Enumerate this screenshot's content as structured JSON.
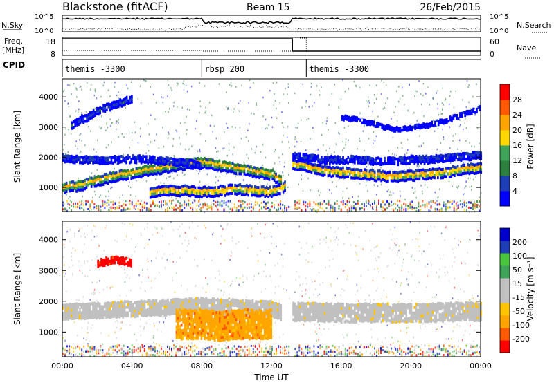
{
  "header": {
    "title": "Blackstone (fitACF)",
    "beam": "Beam 15",
    "date": "26/Feb/2015"
  },
  "top_panels": {
    "nsky_label": "N.Sky",
    "nsky_ticks": [
      "10^5",
      "10^0"
    ],
    "nsearch_label": "N.Search",
    "nsearch_ticks": [
      "10^5",
      "10^0"
    ],
    "freq_label": "Freq.",
    "freq_unit": "[MHz]",
    "freq_ticks": [
      "18",
      "8"
    ],
    "nave_label": "Nave",
    "nave_ticks": [
      "60",
      "0"
    ],
    "cpid_label": "CPID",
    "cpid_segments": [
      {
        "label": "themis -3300",
        "start_hour": 0
      },
      {
        "label": "rbsp 200",
        "start_hour": 8
      },
      {
        "label": "themis -3300",
        "start_hour": 14
      }
    ]
  },
  "colors": {
    "power": [
      "#0000ff",
      "#1e3cb4",
      "#2c7f3e",
      "#3fa35a",
      "#ffd700",
      "#ffa500",
      "#ff5a00",
      "#ff0000"
    ],
    "velocity": [
      "#ff0000",
      "#ff5a00",
      "#ffa500",
      "#ffc400",
      "#c0c0c0",
      "#c0c0c0",
      "#3fa35a",
      "#4ac53f",
      "#1e3cb4",
      "#0000cc"
    ],
    "ground_grey": "#c0c0c0"
  },
  "chart_data": [
    {
      "type": "heatmap",
      "name": "Power",
      "ylabel": "Slant Range [km]",
      "yticks": [
        "1000",
        "2000",
        "3000",
        "4000"
      ],
      "ylim": [
        200,
        4600
      ],
      "xlim": [
        0,
        24
      ],
      "colorbar_label": "Power [dB]",
      "colorbar_ticks": [
        "4",
        "8",
        "12",
        "16",
        "20",
        "24",
        "28"
      ],
      "bands": [
        {
          "x": [
            0,
            1,
            2,
            3,
            4,
            5,
            6,
            7,
            8,
            9,
            10,
            11,
            12,
            12.5
          ],
          "y": [
            1050,
            1150,
            1300,
            1450,
            1550,
            1650,
            1750,
            1850,
            1900,
            1800,
            1700,
            1600,
            1500,
            1300
          ],
          "thickness": 350,
          "level": 5
        },
        {
          "x": [
            0,
            1,
            2,
            3,
            4,
            5,
            6,
            7,
            8
          ],
          "y": [
            2050,
            2000,
            1980,
            2000,
            2020,
            2000,
            1950,
            1900,
            1800
          ],
          "thickness": 250,
          "level": 1
        },
        {
          "x": [
            5,
            6,
            7,
            8,
            9,
            10,
            11,
            12,
            12.8
          ],
          "y": [
            900,
            950,
            950,
            900,
            950,
            1000,
            950,
            900,
            1100
          ],
          "thickness": 300,
          "level": 6
        },
        {
          "x": [
            13.2,
            14,
            15,
            16,
            17,
            18,
            19,
            20,
            21,
            22,
            23,
            24
          ],
          "y": [
            1800,
            1750,
            1600,
            1550,
            1500,
            1450,
            1400,
            1450,
            1500,
            1550,
            1650,
            1700
          ],
          "thickness": 300,
          "level": 6
        },
        {
          "x": [
            13.2,
            14,
            15,
            16,
            17,
            18,
            19,
            20,
            21,
            22,
            23,
            24
          ],
          "y": [
            2100,
            2050,
            2000,
            2000,
            2000,
            1950,
            1950,
            2000,
            2000,
            2050,
            2100,
            2150
          ],
          "thickness": 250,
          "level": 1
        },
        {
          "x": [
            0.5,
            1,
            1.5,
            2,
            2.5,
            3,
            3.5,
            4
          ],
          "y": [
            3100,
            3300,
            3400,
            3600,
            3700,
            3800,
            3900,
            4000
          ],
          "thickness": 200,
          "level": 1
        },
        {
          "x": [
            16,
            17,
            18,
            19,
            20,
            21,
            22,
            23,
            24
          ],
          "y": [
            3400,
            3300,
            3150,
            3000,
            3050,
            3150,
            3300,
            3500,
            3700
          ],
          "thickness": 150,
          "level": 0
        }
      ]
    },
    {
      "type": "heatmap",
      "name": "Velocity",
      "ylabel": "Slant Range [km]",
      "yticks": [
        "1000",
        "2000",
        "3000",
        "4000"
      ],
      "ylim": [
        200,
        4600
      ],
      "xlim": [
        0,
        24
      ],
      "xlabel": "Time UT",
      "xticks": [
        "00:00",
        "04:00",
        "08:00",
        "12:00",
        "16:00",
        "20:00",
        "00:00"
      ],
      "colorbar_label": "Velocity [m s⁻¹]",
      "colorbar_ticks": [
        "-200",
        "-100",
        "-50",
        "-15",
        "15",
        "50",
        "100",
        "200"
      ],
      "bands": [
        {
          "x": [
            0,
            2,
            4,
            6,
            8,
            10,
            12,
            12.5
          ],
          "y": [
            1700,
            1750,
            1800,
            1850,
            1900,
            1850,
            1800,
            1700
          ],
          "thickness": 450,
          "level": 4
        },
        {
          "x": [
            6.5,
            8,
            9,
            10,
            11,
            12
          ],
          "y": [
            1300,
            1300,
            1250,
            1300,
            1300,
            1300
          ],
          "thickness": 900,
          "level": 2
        },
        {
          "x": [
            13.2,
            16,
            20,
            24
          ],
          "y": [
            1750,
            1700,
            1700,
            1750
          ],
          "thickness": 600,
          "level": 4
        },
        {
          "x": [
            2,
            3,
            4
          ],
          "y": [
            3300,
            3400,
            3300
          ],
          "thickness": 200,
          "level": 0
        }
      ]
    }
  ]
}
